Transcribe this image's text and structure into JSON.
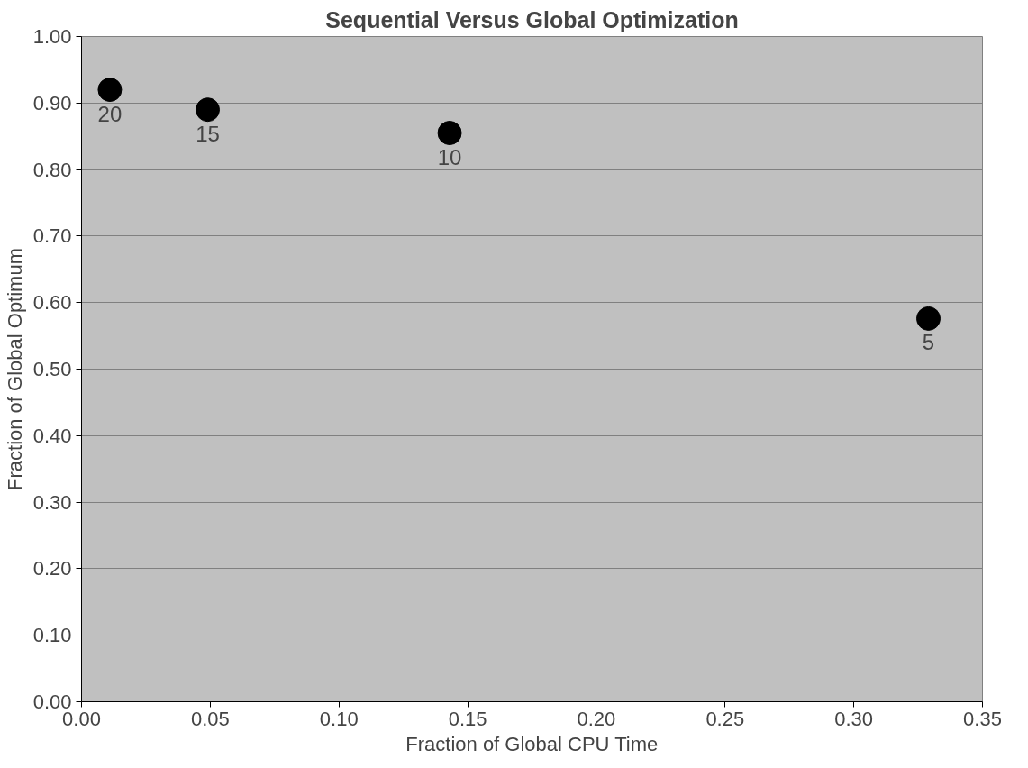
{
  "chart_data": {
    "type": "scatter",
    "title": "Sequential Versus Global Optimization",
    "xlabel": "Fraction of Global CPU Time",
    "ylabel": "Fraction of Global Optimum",
    "x": [
      0.011,
      0.049,
      0.143,
      0.329
    ],
    "series": [
      {
        "color": "#000000",
        "values": [
          0.92,
          0.89,
          0.855,
          0.576
        ]
      }
    ],
    "annotations": [
      {
        "text": "20",
        "x": 0.011,
        "y": 0.92
      },
      {
        "text": "15",
        "x": 0.049,
        "y": 0.89
      },
      {
        "text": "10",
        "x": 0.143,
        "y": 0.855
      },
      {
        "text": "5",
        "x": 0.329,
        "y": 0.576
      }
    ],
    "xlim": [
      0,
      0.35
    ],
    "ylim": [
      0,
      1
    ],
    "xticks": [
      {
        "value": 0,
        "label": "0.00"
      },
      {
        "value": 0.05,
        "label": "0.05"
      },
      {
        "value": 0.1,
        "label": "0.10"
      },
      {
        "value": 0.15,
        "label": "0.15"
      },
      {
        "value": 0.2,
        "label": "0.20"
      },
      {
        "value": 0.25,
        "label": "0.25"
      },
      {
        "value": 0.3,
        "label": "0.30"
      },
      {
        "value": 0.35,
        "label": "0.35"
      }
    ],
    "yticks": [
      {
        "value": 0,
        "label": "0.00"
      },
      {
        "value": 0.1,
        "label": "0.10"
      },
      {
        "value": 0.2,
        "label": "0.20"
      },
      {
        "value": 0.3,
        "label": "0.30"
      },
      {
        "value": 0.4,
        "label": "0.40"
      },
      {
        "value": 0.5,
        "label": "0.50"
      },
      {
        "value": 0.6,
        "label": "0.60"
      },
      {
        "value": 0.7,
        "label": "0.70"
      },
      {
        "value": 0.8,
        "label": "0.80"
      },
      {
        "value": 0.9,
        "label": "0.90"
      },
      {
        "value": 1,
        "label": "1.00"
      }
    ],
    "grid": "y",
    "marker": "circle"
  }
}
